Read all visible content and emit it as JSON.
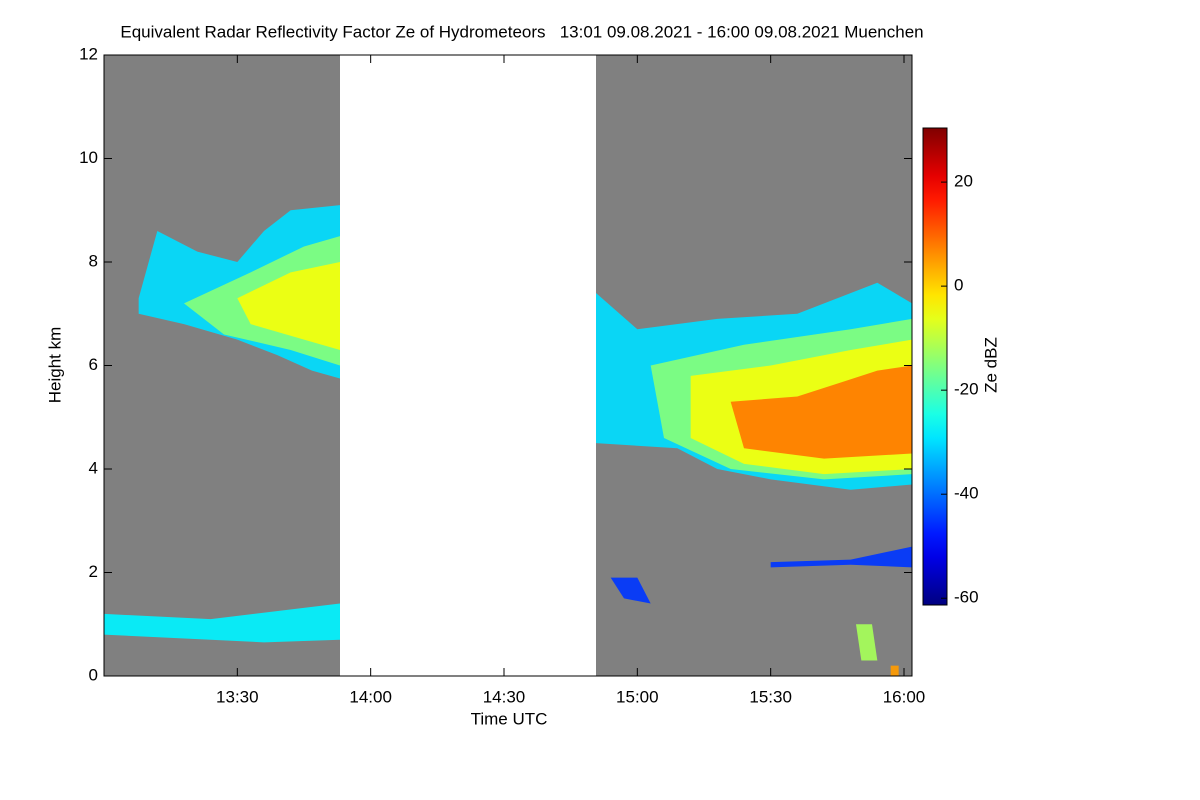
{
  "chart_data": {
    "type": "heatmap",
    "title": "Equivalent Radar Reflectivity Factor Ze of Hydrometeors   13:01 09.08.2021 - 16:00 09.08.2021 Muenchen",
    "x_label": "Time UTC",
    "y_label": "Height km",
    "colorbar_label": "Ze dBZ",
    "xlim": [
      13.0,
      16.03
    ],
    "ylim": [
      0,
      12
    ],
    "xticks": [
      {
        "value": 13.5,
        "label": "13:30"
      },
      {
        "value": 14.0,
        "label": "14:00"
      },
      {
        "value": 14.5,
        "label": "14:30"
      },
      {
        "value": 15.0,
        "label": "15:00"
      },
      {
        "value": 15.5,
        "label": "15:30"
      },
      {
        "value": 16.0,
        "label": "16:00"
      }
    ],
    "yticks": [
      0,
      2,
      4,
      6,
      8,
      10,
      12
    ],
    "clim": [
      -61.3,
      30.4
    ],
    "cticks": [
      -60,
      -40,
      -20,
      0,
      20
    ],
    "background_color": "#808080",
    "coverage": [
      [
        13.0,
        13.885
      ],
      [
        14.845,
        16.03
      ]
    ],
    "echoes": [
      {
        "dbz": -30,
        "x": [
          13.13,
          13.2,
          13.35,
          13.5,
          13.6,
          13.7,
          13.885,
          13.885,
          13.78,
          13.65,
          13.5,
          13.3,
          13.13
        ],
        "y": [
          7.3,
          8.6,
          8.2,
          8.0,
          8.6,
          9.0,
          9.1,
          5.75,
          5.9,
          6.2,
          6.5,
          6.8,
          7.0
        ]
      },
      {
        "dbz": -15,
        "x": [
          13.3,
          13.55,
          13.75,
          13.885,
          13.885,
          13.7,
          13.45
        ],
        "y": [
          7.2,
          7.8,
          8.3,
          8.5,
          6.0,
          6.3,
          6.6
        ]
      },
      {
        "dbz": -5,
        "x": [
          13.5,
          13.7,
          13.885,
          13.885,
          13.75,
          13.55
        ],
        "y": [
          7.3,
          7.8,
          8.0,
          6.3,
          6.5,
          6.8
        ]
      },
      {
        "dbz": -30,
        "x": [
          14.845,
          15.0,
          15.3,
          15.6,
          15.75,
          15.9,
          16.03,
          16.03,
          15.8,
          15.5,
          15.3,
          15.15,
          14.845
        ],
        "y": [
          7.4,
          6.7,
          6.9,
          7.0,
          7.3,
          7.6,
          7.2,
          3.7,
          3.6,
          3.8,
          4.0,
          4.4,
          4.5
        ]
      },
      {
        "dbz": -15,
        "x": [
          15.05,
          15.4,
          15.8,
          16.03,
          16.03,
          15.7,
          15.35,
          15.1
        ],
        "y": [
          6.0,
          6.4,
          6.7,
          6.9,
          3.9,
          3.8,
          4.0,
          4.6
        ]
      },
      {
        "dbz": -5,
        "x": [
          15.2,
          15.5,
          15.8,
          16.03,
          16.03,
          15.7,
          15.4,
          15.2
        ],
        "y": [
          5.8,
          6.0,
          6.3,
          6.5,
          4.0,
          3.9,
          4.1,
          4.6
        ]
      },
      {
        "dbz": 8,
        "x": [
          15.35,
          15.6,
          15.9,
          16.03,
          16.03,
          15.7,
          15.4
        ],
        "y": [
          5.3,
          5.4,
          5.9,
          6.0,
          4.3,
          4.2,
          4.4
        ]
      },
      {
        "dbz": -28,
        "x": [
          13.0,
          13.4,
          13.885,
          13.885,
          13.6,
          13.0
        ],
        "y": [
          1.2,
          1.1,
          1.4,
          0.7,
          0.65,
          0.8
        ]
      },
      {
        "dbz": -45,
        "x": [
          15.5,
          15.8,
          16.03,
          16.03,
          15.8,
          15.5
        ],
        "y": [
          2.2,
          2.25,
          2.5,
          2.1,
          2.15,
          2.1
        ]
      },
      {
        "dbz": -45,
        "x": [
          14.9,
          15.0,
          15.05,
          14.95
        ],
        "y": [
          1.9,
          1.9,
          1.4,
          1.5
        ]
      },
      {
        "dbz": -12,
        "x": [
          15.82,
          15.88,
          15.9,
          15.84
        ],
        "y": [
          1.0,
          1.0,
          0.3,
          0.3
        ]
      },
      {
        "dbz": 5,
        "x": [
          15.95,
          15.98,
          15.98,
          15.95
        ],
        "y": [
          0.2,
          0.2,
          0.0,
          0.0
        ]
      }
    ]
  }
}
